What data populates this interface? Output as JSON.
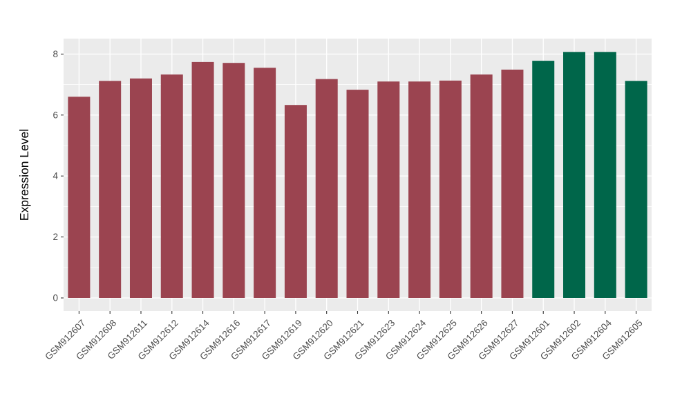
{
  "chart_data": {
    "type": "bar",
    "title": "",
    "xlabel": "",
    "ylabel": "Expression Level",
    "categories": [
      "GSM912607",
      "GSM912608",
      "GSM912611",
      "GSM912612",
      "GSM912614",
      "GSM912616",
      "GSM912617",
      "GSM912619",
      "GSM912620",
      "GSM912621",
      "GSM912623",
      "GSM912624",
      "GSM912625",
      "GSM912626",
      "GSM912627",
      "GSM912601",
      "GSM912602",
      "GSM912604",
      "GSM912605"
    ],
    "values": [
      6.6,
      7.12,
      7.2,
      7.33,
      7.74,
      7.71,
      7.55,
      6.33,
      7.18,
      6.83,
      7.1,
      7.1,
      7.13,
      7.33,
      7.49,
      7.78,
      8.07,
      8.07,
      7.12
    ],
    "bar_colors": [
      "#9B4450",
      "#9B4450",
      "#9B4450",
      "#9B4450",
      "#9B4450",
      "#9B4450",
      "#9B4450",
      "#9B4450",
      "#9B4450",
      "#9B4450",
      "#9B4450",
      "#9B4450",
      "#9B4450",
      "#9B4450",
      "#9B4450",
      "#00664A",
      "#00664A",
      "#00664A",
      "#00664A"
    ],
    "group_colors": {
      "group1": "#9B4450",
      "group2": "#00664A"
    },
    "yticks": [
      0,
      2,
      4,
      6,
      8
    ],
    "yticks_minor": [
      1,
      3,
      5,
      7
    ],
    "ylim": [
      0,
      8.5
    ],
    "x_tick_rotation": 45,
    "legend": "none",
    "grid": "on",
    "panel_bg": "#EBEBEB",
    "grid_color": "#FFFFFF",
    "tick_label_color": "#4D4D4D",
    "axis_title_color": "#000000",
    "tick_mark_color": "#333333"
  }
}
